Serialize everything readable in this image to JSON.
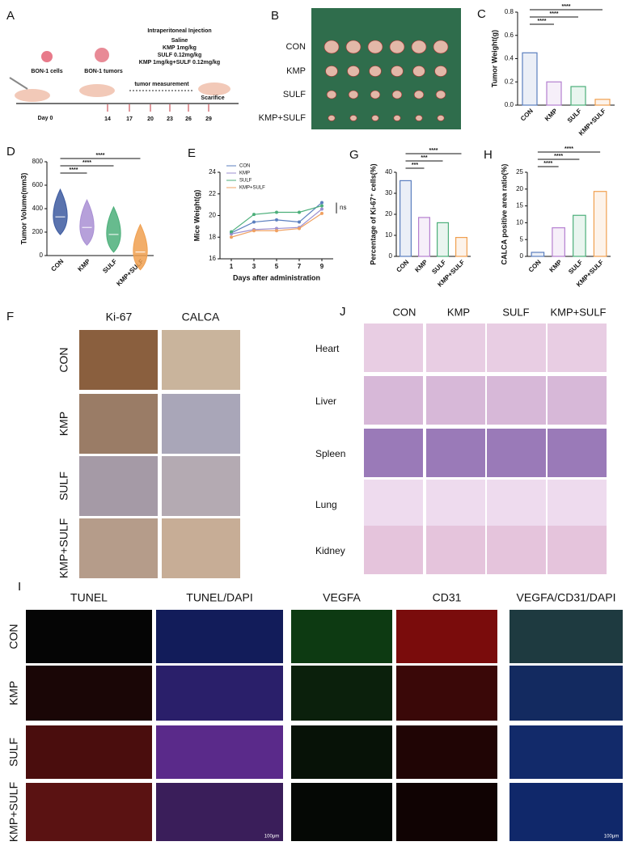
{
  "panels": {
    "A": {
      "panel_label": "A",
      "injection_title": "Intraperitoneal Injection",
      "treatments": [
        "Saline",
        "KMP 1mg/kg",
        "SULF 0.12mg/kg",
        "KMP 1mg/kg+SULF 0.12mg/kg"
      ],
      "cells_label": "BON-1 cells",
      "tumors_label": "BON-1 tumors",
      "measurement": "tumor measurement",
      "sacrifice": "Scarifice",
      "day0": "Day 0",
      "days": [
        "14",
        "17",
        "20",
        "23",
        "26",
        "29"
      ]
    },
    "B": {
      "panel_label": "B",
      "rows": [
        "CON",
        "KMP",
        "SULF",
        "KMP+SULF"
      ]
    },
    "F": {
      "panel_label": "F",
      "columns": [
        "Ki-67",
        "CALCA"
      ],
      "rows": [
        "CON",
        "KMP",
        "SULF",
        "KMP+SULF"
      ]
    },
    "J": {
      "panel_label": "J",
      "columns": [
        "CON",
        "KMP",
        "SULF",
        "KMP+SULF"
      ],
      "rows": [
        "Heart",
        "Liver",
        "Spleen",
        "Lung",
        "Kidney"
      ]
    },
    "I": {
      "panel_label": "I",
      "columns": [
        "TUNEL",
        "TUNEL/DAPI",
        "VEGFA",
        "CD31",
        "VEGFA/CD31/DAPI"
      ],
      "rows": [
        "CON",
        "KMP",
        "SULF",
        "KMP+SULF"
      ],
      "scale_bar": "100μm"
    }
  },
  "chart_data": [
    {
      "type": "bar",
      "panel_label": "C",
      "y_label": "Tumor Weight(g)",
      "categories": [
        "CON",
        "KMP",
        "SULF",
        "KMP+SULF"
      ],
      "values": [
        0.45,
        0.2,
        0.16,
        0.05
      ],
      "colors": [
        "#5b7fbf",
        "#b57fd0",
        "#4caf7a",
        "#f0a050"
      ],
      "ylim": [
        0,
        0.8
      ],
      "yticks": [
        {
          "value": 0,
          "label": "0.0"
        },
        {
          "value": 0.2,
          "label": "0.2"
        },
        {
          "value": 0.4,
          "label": "0.4"
        },
        {
          "value": 0.6,
          "label": "0.6"
        },
        {
          "value": 0.8,
          "label": "0.8"
        }
      ],
      "annotations": [
        "****",
        "****",
        "****"
      ]
    },
    {
      "type": "violin",
      "panel_label": "D",
      "y_label": "Tumor Volume(mm3)",
      "categories": [
        "CON",
        "KMP",
        "SULF",
        "KMP+SULF"
      ],
      "values": [
        330,
        240,
        180,
        30
      ],
      "colors": [
        "#3d5ba0",
        "#a98fd4",
        "#4caf7a",
        "#f0a050"
      ],
      "ylim": [
        0,
        800
      ],
      "yticks": [
        0,
        200,
        400,
        600,
        800
      ],
      "annotations": [
        "****",
        "****",
        "****"
      ]
    },
    {
      "type": "line",
      "panel_label": "E",
      "x_label": "Days after administration",
      "y_label": "Mice Weight(g)",
      "x": [
        1,
        3,
        5,
        7,
        9
      ],
      "xlim": [
        0,
        10
      ],
      "xticks": [
        1,
        3,
        5,
        7,
        9
      ],
      "ylim": [
        16,
        24
      ],
      "yticks": [
        16,
        18,
        20,
        22,
        24
      ],
      "series": [
        {
          "name": "CON",
          "color": "#5b7fbf",
          "values": [
            18.4,
            19.4,
            19.6,
            19.4,
            21.2
          ]
        },
        {
          "name": "KMP",
          "color": "#9b8fd0",
          "values": [
            18.3,
            18.7,
            18.8,
            18.9,
            20.6
          ]
        },
        {
          "name": "SULF",
          "color": "#4caf7a",
          "values": [
            18.5,
            20.1,
            20.3,
            20.3,
            20.9
          ]
        },
        {
          "name": "KMP+SULF",
          "color": "#f0a060",
          "values": [
            18.0,
            18.6,
            18.6,
            18.8,
            20.2
          ]
        }
      ],
      "annotations": [
        "ns"
      ]
    },
    {
      "type": "bar",
      "panel_label": "G",
      "y_label": "Percentage of Ki-67⁺ cells(%)",
      "categories": [
        "CON",
        "KMP",
        "SULF",
        "KMP+SULF"
      ],
      "values": [
        36,
        18.5,
        16,
        9
      ],
      "colors": [
        "#5b7fbf",
        "#b57fd0",
        "#4caf7a",
        "#f0a050"
      ],
      "ylim": [
        0,
        40
      ],
      "yticks": [
        0,
        10,
        20,
        30,
        40
      ],
      "annotations": [
        "***",
        "***",
        "****"
      ]
    },
    {
      "type": "bar",
      "panel_label": "H",
      "y_label": "CALCA positive area ratio(%)",
      "categories": [
        "CON",
        "KMP",
        "SULF",
        "KMP+SULF"
      ],
      "values": [
        1.2,
        8.5,
        12.2,
        19.3
      ],
      "colors": [
        "#5b7fbf",
        "#b57fd0",
        "#4caf7a",
        "#f0a050"
      ],
      "ylim": [
        0,
        25
      ],
      "yticks": [
        0,
        5,
        10,
        15,
        20,
        25
      ],
      "annotations": [
        "****",
        "****",
        "****"
      ]
    }
  ]
}
